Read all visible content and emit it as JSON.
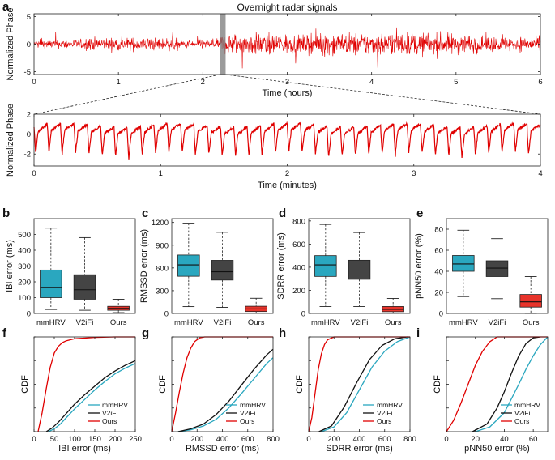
{
  "panels": {
    "a": "a",
    "b": "b",
    "c": "c",
    "d": "d",
    "e": "e",
    "f": "f",
    "g": "g",
    "h": "h",
    "i": "i"
  },
  "chart_data": [
    {
      "id": "overnight",
      "type": "line",
      "title": "Overnight radar signals",
      "xlabel": "Time (hours)",
      "ylabel": "Normalized Phase",
      "xlim": [
        0,
        6
      ],
      "ylim": [
        -5.5,
        5.5
      ],
      "xticks": [
        0,
        1,
        2,
        3,
        4,
        5,
        6
      ],
      "yticks": [
        -5,
        0,
        5
      ],
      "highlight_window_hours": [
        2.2,
        2.27
      ],
      "color": "#e00000"
    },
    {
      "id": "zoom",
      "type": "line",
      "xlabel": "Time (minutes)",
      "ylabel": "Normalized Phase",
      "xlim": [
        0,
        4
      ],
      "ylim": [
        -3.2,
        2
      ],
      "xticks": [
        0,
        1,
        2,
        3,
        4
      ],
      "yticks": [
        -2,
        0,
        2
      ],
      "cycles": 38,
      "color": "#e00000"
    },
    {
      "id": "ibi-box",
      "type": "box",
      "ylabel": "IBI error (ms)",
      "ylim": [
        0,
        600
      ],
      "yticks": [
        0,
        100,
        200,
        300,
        400,
        500
      ],
      "categories": [
        "mmHRV",
        "V2iFi",
        "Ours"
      ],
      "colors": [
        "#2aa7bf",
        "#444444",
        "#e8342b"
      ],
      "boxes": [
        {
          "whislo": 25,
          "q1": 100,
          "med": 165,
          "q3": 275,
          "whishi": 540
        },
        {
          "whislo": 20,
          "q1": 90,
          "med": 150,
          "q3": 245,
          "whishi": 480
        },
        {
          "whislo": 5,
          "q1": 20,
          "med": 32,
          "q3": 45,
          "whishi": 90
        }
      ]
    },
    {
      "id": "rmssd-box",
      "type": "box",
      "ylabel": "RMSSD error (ms)",
      "ylim": [
        0,
        1250
      ],
      "yticks": [
        0,
        300,
        600,
        900,
        1200
      ],
      "categories": [
        "mmHRV",
        "V2iFi",
        "Ours"
      ],
      "colors": [
        "#2aa7bf",
        "#444444",
        "#e8342b"
      ],
      "boxes": [
        {
          "whislo": 90,
          "q1": 490,
          "med": 640,
          "q3": 770,
          "whishi": 1190
        },
        {
          "whislo": 80,
          "q1": 440,
          "med": 550,
          "q3": 700,
          "whishi": 1070
        },
        {
          "whislo": 5,
          "q1": 25,
          "med": 60,
          "q3": 95,
          "whishi": 200
        }
      ]
    },
    {
      "id": "sdrr-box",
      "type": "box",
      "ylabel": "SDRR error (ms)",
      "ylim": [
        0,
        820
      ],
      "yticks": [
        0,
        200,
        400,
        600,
        800
      ],
      "categories": [
        "mmHRV",
        "V2iFi",
        "Ours"
      ],
      "colors": [
        "#2aa7bf",
        "#444444",
        "#e8342b"
      ],
      "boxes": [
        {
          "whislo": 60,
          "q1": 320,
          "med": 420,
          "q3": 500,
          "whishi": 770
        },
        {
          "whislo": 60,
          "q1": 295,
          "med": 375,
          "q3": 460,
          "whishi": 700
        },
        {
          "whislo": 2,
          "q1": 15,
          "med": 35,
          "q3": 60,
          "whishi": 130
        }
      ]
    },
    {
      "id": "pnn50-box",
      "type": "box",
      "ylabel": "pNN50 error (%)",
      "ylim": [
        0,
        90
      ],
      "yticks": [
        0,
        20,
        40,
        60,
        80
      ],
      "categories": [
        "mmHRV",
        "V2iFi",
        "Ours"
      ],
      "colors": [
        "#2aa7bf",
        "#444444",
        "#e8342b"
      ],
      "boxes": [
        {
          "whislo": 16,
          "q1": 40,
          "med": 47,
          "q3": 55,
          "whishi": 79
        },
        {
          "whislo": 14,
          "q1": 35,
          "med": 43,
          "q3": 50,
          "whishi": 71
        },
        {
          "whislo": 0,
          "q1": 6,
          "med": 11,
          "q3": 18,
          "whishi": 35
        }
      ]
    },
    {
      "id": "ibi-cdf",
      "type": "line",
      "ylabel": "CDF",
      "xlabel": "IBI error (ms)",
      "xlim": [
        0,
        250
      ],
      "ylim": [
        0,
        1
      ],
      "xticks": [
        0,
        50,
        100,
        150,
        200,
        250
      ],
      "legend_pos": "bottom-right",
      "series": [
        {
          "name": "mmHRV",
          "color": "#2aa7bf",
          "x": [
            35,
            50,
            65,
            80,
            100,
            125,
            150,
            175,
            200,
            225,
            250
          ],
          "y": [
            0,
            0.03,
            0.08,
            0.15,
            0.24,
            0.34,
            0.44,
            0.53,
            0.61,
            0.67,
            0.72
          ]
        },
        {
          "name": "V2iFi",
          "color": "#111111",
          "x": [
            30,
            45,
            60,
            75,
            100,
            125,
            150,
            175,
            200,
            225,
            250
          ],
          "y": [
            0,
            0.04,
            0.1,
            0.17,
            0.29,
            0.39,
            0.48,
            0.57,
            0.64,
            0.7,
            0.75
          ]
        },
        {
          "name": "Ours",
          "color": "#e00000",
          "x": [
            10,
            20,
            30,
            40,
            50,
            60,
            70,
            80,
            100,
            150,
            200,
            250
          ],
          "y": [
            0,
            0.2,
            0.45,
            0.68,
            0.83,
            0.9,
            0.94,
            0.96,
            0.98,
            0.995,
            1,
            1
          ]
        }
      ]
    },
    {
      "id": "rmssd-cdf",
      "type": "line",
      "ylabel": "CDF",
      "xlabel": "RMSSD error (ms)",
      "xlim": [
        0,
        800
      ],
      "ylim": [
        0,
        1
      ],
      "xticks": [
        0,
        200,
        400,
        600,
        800
      ],
      "legend_pos": "bottom-right",
      "series": [
        {
          "name": "mmHRV",
          "color": "#2aa7bf",
          "x": [
            50,
            150,
            250,
            350,
            450,
            550,
            650,
            750,
            800
          ],
          "y": [
            0,
            0.02,
            0.06,
            0.13,
            0.25,
            0.4,
            0.56,
            0.72,
            0.78
          ]
        },
        {
          "name": "V2iFi",
          "color": "#111111",
          "x": [
            50,
            150,
            250,
            350,
            450,
            550,
            650,
            750,
            800
          ],
          "y": [
            0,
            0.03,
            0.08,
            0.18,
            0.32,
            0.49,
            0.66,
            0.81,
            0.87
          ]
        },
        {
          "name": "Ours",
          "color": "#e00000",
          "x": [
            0,
            30,
            60,
            90,
            120,
            150,
            180,
            220,
            260,
            800
          ],
          "y": [
            0,
            0.2,
            0.42,
            0.62,
            0.78,
            0.88,
            0.95,
            0.99,
            1,
            1
          ]
        }
      ]
    },
    {
      "id": "sdrr-cdf",
      "type": "line",
      "ylabel": "CDF",
      "xlabel": "SDRR error (ms)",
      "xlim": [
        0,
        800
      ],
      "ylim": [
        0,
        1
      ],
      "xticks": [
        0,
        200,
        400,
        600,
        800
      ],
      "legend_pos": "bottom-right",
      "series": [
        {
          "name": "mmHRV",
          "color": "#2aa7bf",
          "x": [
            100,
            200,
            300,
            400,
            500,
            600,
            700,
            800
          ],
          "y": [
            0,
            0.05,
            0.2,
            0.44,
            0.68,
            0.85,
            0.95,
            1
          ]
        },
        {
          "name": "V2iFi",
          "color": "#111111",
          "x": [
            80,
            180,
            280,
            380,
            480,
            580,
            680,
            780
          ],
          "y": [
            0,
            0.06,
            0.26,
            0.52,
            0.76,
            0.91,
            0.98,
            1
          ]
        },
        {
          "name": "Ours",
          "color": "#e00000",
          "x": [
            0,
            25,
            50,
            75,
            100,
            125,
            150,
            200,
            800
          ],
          "y": [
            0,
            0.15,
            0.4,
            0.65,
            0.82,
            0.92,
            0.97,
            1,
            1
          ]
        }
      ]
    },
    {
      "id": "pnn50-cdf",
      "type": "line",
      "ylabel": "CDF",
      "xlabel": "pNN50 error (%)",
      "xlim": [
        0,
        70
      ],
      "ylim": [
        0,
        1
      ],
      "xticks": [
        0,
        20,
        40,
        60
      ],
      "legend_pos": "bottom-right",
      "series": [
        {
          "name": "mmHRV",
          "color": "#2aa7bf",
          "x": [
            20,
            30,
            40,
            45,
            50,
            55,
            60,
            65,
            70
          ],
          "y": [
            0,
            0.05,
            0.2,
            0.35,
            0.5,
            0.66,
            0.8,
            0.92,
            1
          ]
        },
        {
          "name": "V2iFi",
          "color": "#111111",
          "x": [
            18,
            28,
            35,
            40,
            45,
            50,
            55,
            60,
            65
          ],
          "y": [
            0,
            0.08,
            0.25,
            0.42,
            0.62,
            0.8,
            0.93,
            0.99,
            1
          ]
        },
        {
          "name": "Ours",
          "color": "#e00000",
          "x": [
            0,
            5,
            10,
            15,
            20,
            25,
            30,
            35,
            70
          ],
          "y": [
            0,
            0.12,
            0.3,
            0.5,
            0.7,
            0.85,
            0.95,
            1,
            1
          ]
        }
      ]
    }
  ]
}
